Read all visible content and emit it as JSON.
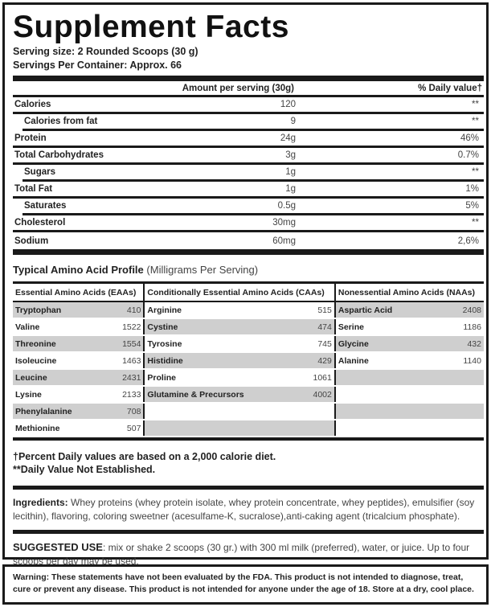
{
  "title": "Supplement Facts",
  "serving_size": "Serving size: 2 Rounded Scoops (30 g)",
  "servings_per_container": "Servings Per Container: Approx. 66",
  "nutrition": {
    "header_amount": "Amount per serving (30g)",
    "header_dv": "% Daily value†",
    "rows": [
      {
        "label": "Calories",
        "amount": "120",
        "dv": "**"
      },
      {
        "label": "Calories from fat",
        "amount": "9",
        "dv": "**"
      },
      {
        "label": "Protein",
        "amount": "24g",
        "dv": "46%"
      },
      {
        "label": "Total Carbohydrates",
        "amount": "3g",
        "dv": "0.7%"
      },
      {
        "label": "Sugars",
        "amount": "1g",
        "dv": "**"
      },
      {
        "label": "Total Fat",
        "amount": "1g",
        "dv": "1%"
      },
      {
        "label": "Saturates",
        "amount": "0.5g",
        "dv": "5%"
      },
      {
        "label": "Cholesterol",
        "amount": "30mg",
        "dv": "**"
      },
      {
        "label": "Sodium",
        "amount": "60mg",
        "dv": "2,6%"
      }
    ]
  },
  "amino": {
    "title": "Typical Amino Acid Profile",
    "subtitle": "(Milligrams Per Serving)",
    "headers": [
      "Essential Amino Acids (EAAs)",
      "Conditionally Essential Amino Acids (CAAs)",
      "Nonessential Amino Acids (NAAs)"
    ],
    "eaa": [
      [
        "Tryptophan",
        "410"
      ],
      [
        "Valine",
        "1522"
      ],
      [
        "Threonine",
        "1554"
      ],
      [
        "Isoleucine",
        "1463"
      ],
      [
        "Leucine",
        "2431"
      ],
      [
        "Lysine",
        "2133"
      ],
      [
        "Phenylalanine",
        "708"
      ],
      [
        "Methionine",
        "507"
      ]
    ],
    "caa": [
      [
        "Arginine",
        "515"
      ],
      [
        "Cystine",
        "474"
      ],
      [
        "Tyrosine",
        "745"
      ],
      [
        "Histidine",
        "429"
      ],
      [
        "Proline",
        "1061"
      ],
      [
        "Glutamine & Precursors",
        "4002"
      ]
    ],
    "naa": [
      [
        "Aspartic Acid",
        "2408"
      ],
      [
        "Serine",
        "1186"
      ],
      [
        "Glycine",
        "432"
      ],
      [
        "Alanine",
        "1140"
      ]
    ]
  },
  "footnote_1": "†Percent Daily values are based on a 2,000 calorie diet.",
  "footnote_2": "**Daily Value Not Established.",
  "ingredients_label": "Ingredients:",
  "ingredients_text": " Whey proteins (whey protein isolate, whey protein concentrate, whey peptides), emulsifier (soy lecithin), flavoring, coloring sweetner (acesulfame-K, sucralose),anti-caking agent (tricalcium phosphate).",
  "suggested_label": "SUGGESTED USE",
  "suggested_text": ": mix or shake 2 scoops (30 gr.) with 300 ml milk (preferred), water, or juice. Up to four scoops per day may be used.",
  "warning": "Warning: These statements have not been evaluated by the FDA. This product is not intended to diagnose, treat, cure or prevent any disease. This product is not intended for anyone under the age of 18. Store at a dry, cool place.",
  "colors": {
    "border": "#1a1a1a",
    "cell_shade": "#cfcfcf"
  }
}
